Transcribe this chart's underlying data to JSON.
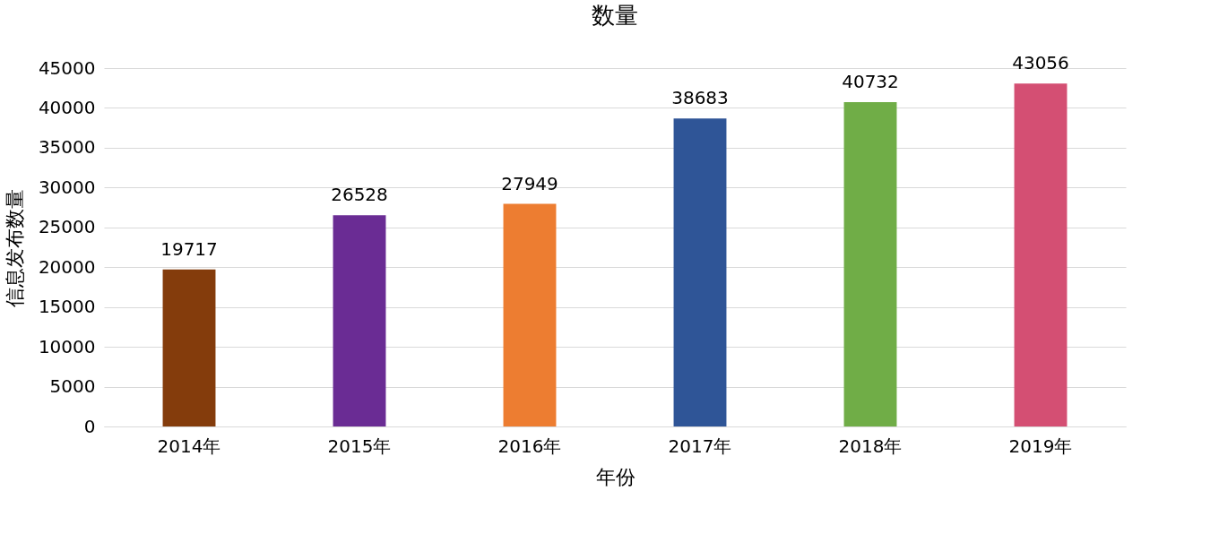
{
  "chart_data": {
    "type": "bar",
    "title": "数量",
    "xlabel": "年份",
    "ylabel": "信息发布数量",
    "categories": [
      "2014年",
      "2015年",
      "2016年",
      "2017年",
      "2018年",
      "2019年"
    ],
    "values": [
      19717,
      26528,
      27949,
      38683,
      40732,
      43056
    ],
    "colors": [
      "#843c0c",
      "#6a2c94",
      "#ed7d31",
      "#2f5597",
      "#70ad47",
      "#d44f73"
    ],
    "ylim": [
      0,
      45000
    ],
    "yticks": [
      0,
      5000,
      10000,
      15000,
      20000,
      25000,
      30000,
      35000,
      40000,
      45000
    ],
    "grid": "y",
    "data_labels": true
  }
}
